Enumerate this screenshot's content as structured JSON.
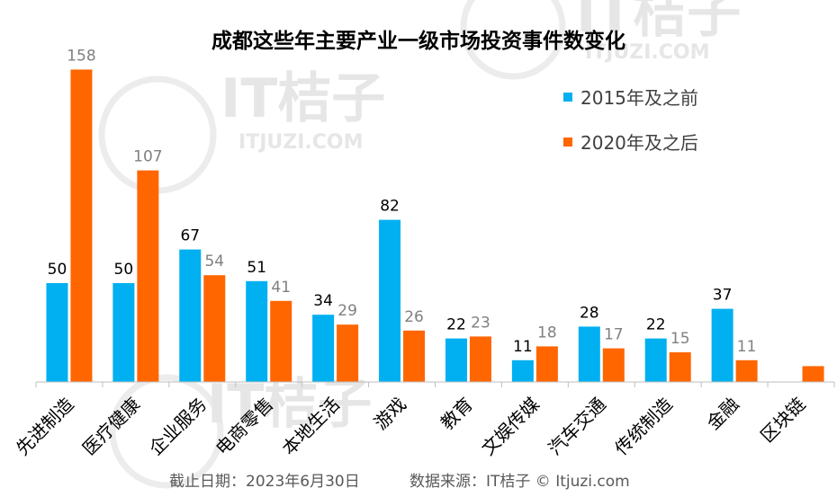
{
  "colors": {
    "series_a": "#00B0F0",
    "series_b": "#FF6600",
    "axis": "#BFBFBF"
  },
  "watermark": {
    "brand": "IT桔子",
    "domain": "ITJUZI.COM"
  },
  "footer": {
    "date_text": "截止日期：2023年6月30日",
    "source_text": "数据来源：IT桔子 © Itjuzi.com"
  },
  "chart_data": {
    "type": "bar",
    "title": "成都这些年主要产业一级市场投资事件数变化",
    "xlabel": "",
    "ylabel": "",
    "ylim": [
      0,
      160
    ],
    "grid": false,
    "legend_position": "top-right",
    "categories": [
      "先进制造",
      "医疗健康",
      "企业服务",
      "电商零售",
      "本地生活",
      "游戏",
      "教育",
      "文娱传媒",
      "汽车交通",
      "传统制造",
      "金融",
      "区块链"
    ],
    "series": [
      {
        "name": "2015年及之前",
        "values": [
          50,
          50,
          67,
          51,
          34,
          82,
          22,
          11,
          28,
          22,
          37,
          0
        ],
        "labels": [
          "50",
          "50",
          "67",
          "51",
          "34",
          "82",
          "22",
          "11",
          "28",
          "22",
          "37",
          ""
        ]
      },
      {
        "name": "2020年及之后",
        "values": [
          158,
          107,
          54,
          41,
          29,
          26,
          23,
          18,
          17,
          15,
          11,
          8
        ],
        "labels": [
          "158",
          "107",
          "54",
          "41",
          "29",
          "26",
          "23",
          "18",
          "17",
          "15",
          "11",
          ""
        ]
      }
    ]
  }
}
